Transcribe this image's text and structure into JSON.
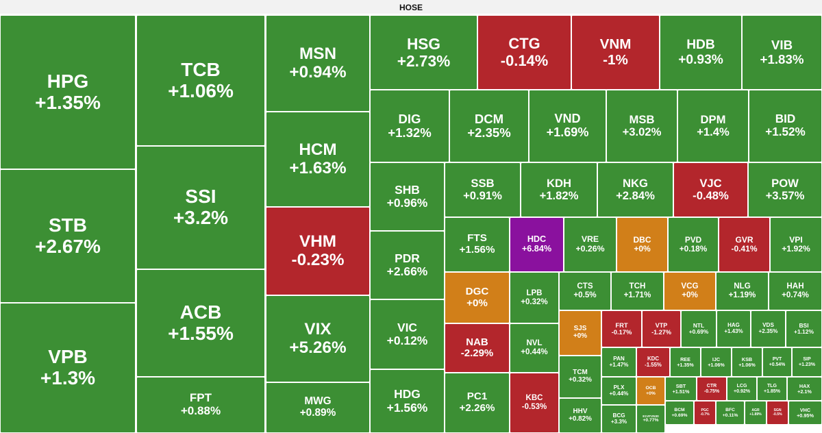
{
  "header": {
    "title": "HOSE"
  },
  "tiles": [
    {
      "ticker": "HPG",
      "change": "+1.35%"
    },
    {
      "ticker": "STB",
      "change": "+2.67%"
    },
    {
      "ticker": "VPB",
      "change": "+1.3%"
    },
    {
      "ticker": "TCB",
      "change": "+1.06%"
    },
    {
      "ticker": "SSI",
      "change": "+3.2%"
    },
    {
      "ticker": "ACB",
      "change": "+1.55%"
    },
    {
      "ticker": "FPT",
      "change": "+0.88%"
    },
    {
      "ticker": "MSN",
      "change": "+0.94%"
    },
    {
      "ticker": "HCM",
      "change": "+1.63%"
    },
    {
      "ticker": "VHM",
      "change": "-0.23%"
    },
    {
      "ticker": "VIX",
      "change": "+5.26%"
    },
    {
      "ticker": "MWG",
      "change": "+0.89%"
    },
    {
      "ticker": "HSG",
      "change": "+2.73%"
    },
    {
      "ticker": "CTG",
      "change": "-0.14%"
    },
    {
      "ticker": "VNM",
      "change": "-1%"
    },
    {
      "ticker": "HDB",
      "change": "+0.93%"
    },
    {
      "ticker": "VIB",
      "change": "+1.83%"
    },
    {
      "ticker": "DIG",
      "change": "+1.32%"
    },
    {
      "ticker": "DCM",
      "change": "+2.35%"
    },
    {
      "ticker": "VND",
      "change": "+1.69%"
    },
    {
      "ticker": "MSB",
      "change": "+3.02%"
    },
    {
      "ticker": "DPM",
      "change": "+1.4%"
    },
    {
      "ticker": "BID",
      "change": "+1.52%"
    },
    {
      "ticker": "SHB",
      "change": "+0.96%"
    },
    {
      "ticker": "PDR",
      "change": "+2.66%"
    },
    {
      "ticker": "VIC",
      "change": "+0.12%"
    },
    {
      "ticker": "HDG",
      "change": "+1.56%"
    },
    {
      "ticker": "SSB",
      "change": "+0.91%"
    },
    {
      "ticker": "KDH",
      "change": "+1.82%"
    },
    {
      "ticker": "NKG",
      "change": "+2.84%"
    },
    {
      "ticker": "VJC",
      "change": "-0.48%"
    },
    {
      "ticker": "POW",
      "change": "+3.57%"
    },
    {
      "ticker": "FTS",
      "change": "+1.56%"
    },
    {
      "ticker": "HDC",
      "change": "+6.84%"
    },
    {
      "ticker": "VRE",
      "change": "+0.26%"
    },
    {
      "ticker": "DBC",
      "change": "+0%"
    },
    {
      "ticker": "PVD",
      "change": "+0.18%"
    },
    {
      "ticker": "GVR",
      "change": "-0.41%"
    },
    {
      "ticker": "VPI",
      "change": "+1.92%"
    },
    {
      "ticker": "DGC",
      "change": "+0%"
    },
    {
      "ticker": "NAB",
      "change": "-2.29%"
    },
    {
      "ticker": "PC1",
      "change": "+2.26%"
    },
    {
      "ticker": "LPB",
      "change": "+0.32%"
    },
    {
      "ticker": "NVL",
      "change": "+0.44%"
    },
    {
      "ticker": "KBC",
      "change": "-0.53%"
    },
    {
      "ticker": "CTS",
      "change": "+0.5%"
    },
    {
      "ticker": "TCH",
      "change": "+1.71%"
    },
    {
      "ticker": "VCG",
      "change": "+0%"
    },
    {
      "ticker": "NLG",
      "change": "+1.19%"
    },
    {
      "ticker": "HAH",
      "change": "+0.74%"
    },
    {
      "ticker": "SJS",
      "change": "+0%"
    },
    {
      "ticker": "TCM",
      "change": "+0.32%"
    },
    {
      "ticker": "HHV",
      "change": "+0.82%"
    },
    {
      "ticker": "FRT",
      "change": "-0.17%"
    },
    {
      "ticker": "VTP",
      "change": "-1.27%"
    },
    {
      "ticker": "NTL",
      "change": "+0.69%"
    },
    {
      "ticker": "HAG",
      "change": "+1.43%"
    },
    {
      "ticker": "VDS",
      "change": "+2.35%"
    },
    {
      "ticker": "BSI",
      "change": "+1.12%"
    },
    {
      "ticker": "PAN",
      "change": "+1.47%"
    },
    {
      "ticker": "KDC",
      "change": "-1.55%"
    },
    {
      "ticker": "REE",
      "change": "+1.35%"
    },
    {
      "ticker": "IJC",
      "change": "+1.06%"
    },
    {
      "ticker": "KSB",
      "change": "+1.06%"
    },
    {
      "ticker": "PVT",
      "change": "+0.54%"
    },
    {
      "ticker": "SIP",
      "change": "+1.23%"
    },
    {
      "ticker": "PLX",
      "change": "+0.44%"
    },
    {
      "ticker": "OCB",
      "change": "+0%"
    },
    {
      "ticker": "SBT",
      "change": "+1.51%"
    },
    {
      "ticker": "CTR",
      "change": "-0.75%"
    },
    {
      "ticker": "LCG",
      "change": "+0.92%"
    },
    {
      "ticker": "TLG",
      "change": "+1.85%"
    },
    {
      "ticker": "HAX",
      "change": "+2.1%"
    },
    {
      "ticker": "BCG",
      "change": "+3.3%"
    },
    {
      "ticker": "E1VFVN30",
      "change": "+0.77%"
    },
    {
      "ticker": "BCM",
      "change": "+0.69%"
    },
    {
      "ticker": "PGC",
      "change": "-0.7%"
    },
    {
      "ticker": "BFC",
      "change": "+0.11%"
    },
    {
      "ticker": "AGR",
      "change": "+1.89%"
    },
    {
      "ticker": "SGN",
      "change": "-0.5%"
    },
    {
      "ticker": "VHC",
      "change": "+0.95%"
    }
  ]
}
